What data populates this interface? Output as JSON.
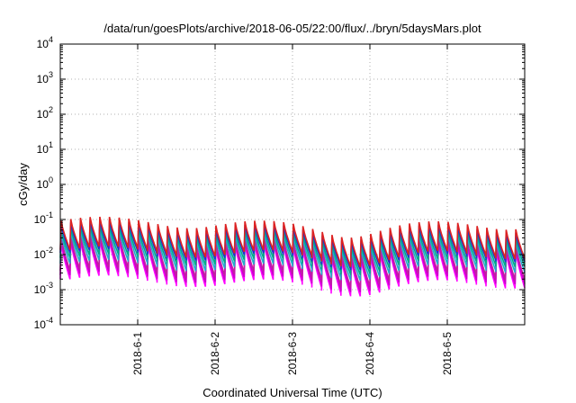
{
  "chart_data": {
    "type": "line",
    "title": "/data/run/goesPlots/archive/2018-06-05/22:00/flux/../bryn/5daysMars.plot",
    "xlabel": "Coordinated Universal Time (UTC)",
    "ylabel": "cGy/day",
    "yscale": "log",
    "ylim": [
      0.0001,
      10000
    ],
    "y_ticks": [
      {
        "base": "10",
        "exp": "-4",
        "value": 0.0001
      },
      {
        "base": "10",
        "exp": "-3",
        "value": 0.001
      },
      {
        "base": "10",
        "exp": "-2",
        "value": 0.01
      },
      {
        "base": "10",
        "exp": "-1",
        "value": 0.1
      },
      {
        "base": "10",
        "exp": "0",
        "value": 1
      },
      {
        "base": "10",
        "exp": "1",
        "value": 10
      },
      {
        "base": "10",
        "exp": "2",
        "value": 100
      },
      {
        "base": "10",
        "exp": "3",
        "value": 1000
      },
      {
        "base": "10",
        "exp": "4",
        "value": 10000
      }
    ],
    "xlim": [
      "2018-05-31T00:00",
      "2018-06-06T00:00"
    ],
    "x_ticks": [
      {
        "label": "2018-6-1",
        "value": "2018-06-01T00:00"
      },
      {
        "label": "2018-6-2",
        "value": "2018-06-02T00:00"
      },
      {
        "label": "2018-6-3",
        "value": "2018-06-03T00:00"
      },
      {
        "label": "2018-6-4",
        "value": "2018-06-04T00:00"
      },
      {
        "label": "2018-6-5",
        "value": "2018-06-05T00:00"
      }
    ],
    "grid": true,
    "legend": "none",
    "pattern": {
      "description_values": "periodic sawtooth dose-rate series, about 8 cycles per day",
      "cycles_per_day": 8
    },
    "series": [
      {
        "color": "#ff00ff",
        "peak": 0.018,
        "trough": 0.0016
      },
      {
        "color": "#cc00cc",
        "peak": 0.022,
        "trough": 0.0021
      },
      {
        "color": "#c020a0",
        "peak": 0.026,
        "trough": 0.0028
      },
      {
        "color": "#22aacc",
        "peak": 0.035,
        "trough": 0.0045
      },
      {
        "color": "#00aa88",
        "peak": 0.045,
        "trough": 0.0065
      },
      {
        "color": "#2233cc",
        "peak": 0.06,
        "trough": 0.009
      },
      {
        "color": "#dd2222",
        "peak": 0.075,
        "trough": 0.011
      }
    ]
  }
}
